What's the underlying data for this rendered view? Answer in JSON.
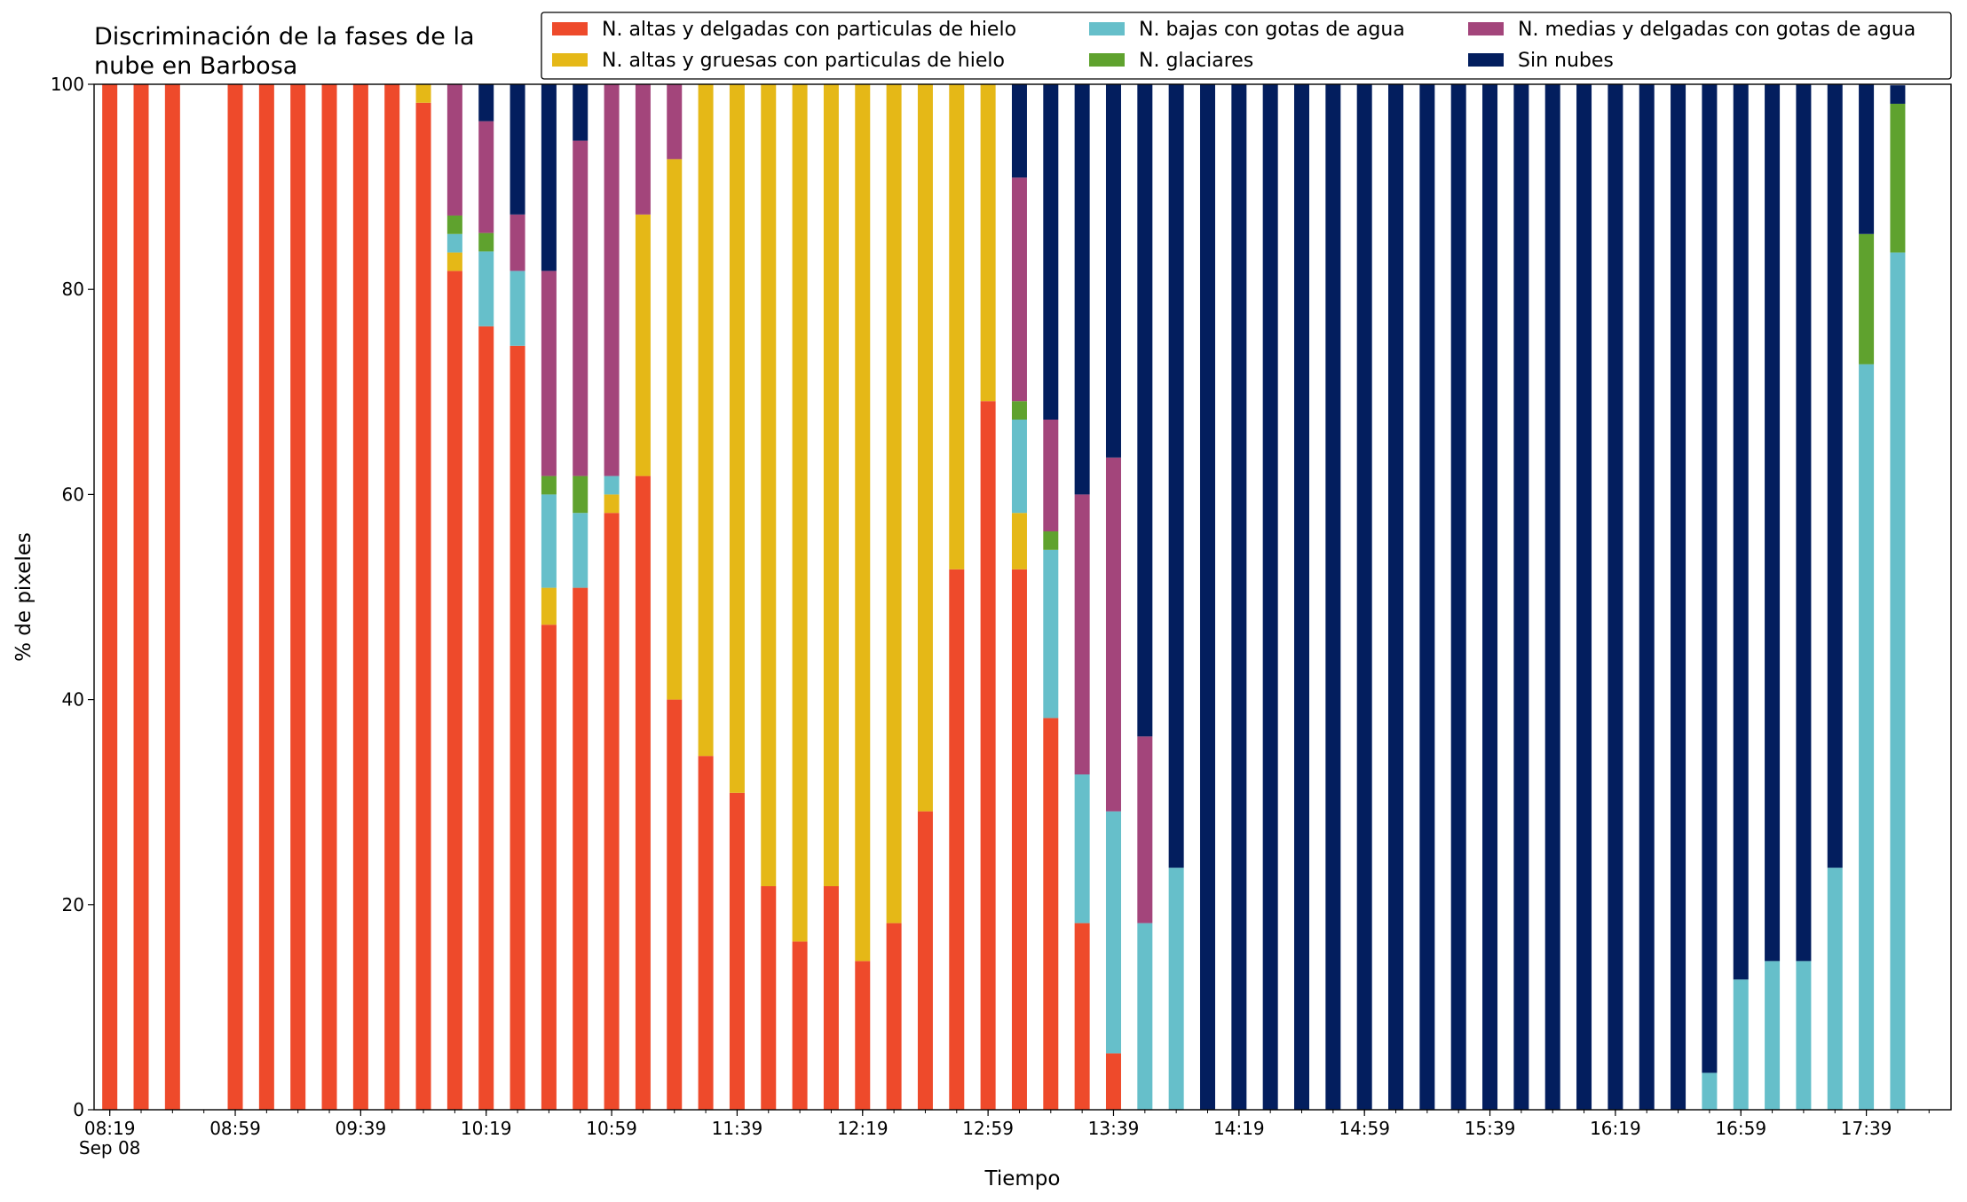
{
  "chart_data": {
    "type": "bar",
    "stacked": true,
    "title": "Discriminación de la fases de la\nnube en Barbosa",
    "x_label": "Tiempo",
    "y_label": "% de pixeles",
    "x": [
      "08:19",
      "08:29",
      "08:39",
      "08:59",
      "09:09",
      "09:19",
      "09:29",
      "09:39",
      "09:49",
      "09:59",
      "10:09",
      "10:19",
      "10:29",
      "10:39",
      "10:49",
      "10:59",
      "11:09",
      "11:19",
      "11:29",
      "11:39",
      "11:49",
      "11:59",
      "12:09",
      "12:19",
      "12:29",
      "12:39",
      "12:49",
      "12:59",
      "13:09",
      "13:19",
      "13:29",
      "13:39",
      "13:49",
      "13:59",
      "14:09",
      "14:19",
      "14:29",
      "14:39",
      "14:49",
      "14:59",
      "15:09",
      "15:19",
      "15:29",
      "15:39",
      "15:49",
      "15:59",
      "16:09",
      "16:19",
      "16:29",
      "16:39",
      "16:49",
      "16:59",
      "17:09",
      "17:19",
      "17:29",
      "17:39",
      "17:49"
    ],
    "xlim": [
      "08:14",
      "18:06"
    ],
    "xticks": [
      {
        "value": "08:19",
        "label": "08:19\nSep 08"
      },
      "08:59",
      "09:39",
      "10:19",
      "10:59",
      "11:39",
      "12:19",
      "12:59",
      "13:39",
      "14:19",
      "14:59",
      "15:39",
      "16:19",
      "16:59",
      "17:39"
    ],
    "ylim": [
      0,
      100
    ],
    "yticks": [
      0,
      20,
      40,
      60,
      80,
      100
    ],
    "grid": false,
    "legend": "top right",
    "series": [
      {
        "name": "N. altas y delgadas con particulas de hielo",
        "color": "#ee4a2b",
        "values": [
          100,
          100,
          100,
          100,
          100,
          100,
          100,
          100,
          100,
          98.2,
          81.8,
          76.4,
          74.5,
          47.3,
          50.9,
          58.2,
          61.8,
          40,
          34.5,
          30.9,
          21.8,
          16.4,
          21.8,
          14.5,
          18.2,
          29.1,
          52.7,
          69.1,
          52.7,
          38.2,
          18.2,
          5.5,
          0,
          0,
          0,
          0,
          0,
          0,
          0,
          0,
          0,
          0,
          0,
          0,
          0,
          0,
          0,
          0,
          0,
          0,
          0,
          0,
          0,
          0,
          0,
          0,
          0
        ]
      },
      {
        "name": "N. altas y gruesas con particulas de hielo",
        "color": "#e5b817",
        "values": [
          0,
          0,
          0,
          0,
          0,
          0,
          0,
          0,
          0,
          1.8,
          1.8,
          0,
          0,
          3.6,
          0,
          1.8,
          25.5,
          52.7,
          65.5,
          69.1,
          78.2,
          83.6,
          78.2,
          85.5,
          81.8,
          70.9,
          47.3,
          30.9,
          5.5,
          0,
          0,
          0,
          0,
          0,
          0,
          0,
          0,
          0,
          0,
          0,
          0,
          0,
          0,
          0,
          0,
          0,
          0,
          0,
          0,
          0,
          0,
          0,
          0,
          0,
          0,
          0,
          0
        ]
      },
      {
        "name": "N. bajas con gotas de agua",
        "color": "#66bfca",
        "values": [
          0,
          0,
          0,
          0,
          0,
          0,
          0,
          0,
          0,
          0,
          1.8,
          7.3,
          7.3,
          9.1,
          7.3,
          1.8,
          0,
          0,
          0,
          0,
          0,
          0,
          0,
          0,
          0,
          0,
          0,
          0,
          9.1,
          16.4,
          14.5,
          23.6,
          18.2,
          23.6,
          0,
          0,
          0,
          0,
          0,
          0,
          0,
          0,
          0,
          0,
          0,
          0,
          0,
          0,
          0,
          0,
          3.6,
          12.7,
          14.5,
          14.5,
          23.6,
          72.7,
          83.6
        ]
      },
      {
        "name": "N. glaciares",
        "color": "#5fa22e",
        "values": [
          0,
          0,
          0,
          0,
          0,
          0,
          0,
          0,
          0,
          0,
          1.8,
          1.8,
          0,
          1.8,
          3.6,
          0,
          0,
          0,
          0,
          0,
          0,
          0,
          0,
          0,
          0,
          0,
          0,
          0,
          1.8,
          1.8,
          0,
          0,
          0,
          0,
          0,
          0,
          0,
          0,
          0,
          0,
          0,
          0,
          0,
          0,
          0,
          0,
          0,
          0,
          0,
          0,
          0,
          0,
          0,
          0,
          0,
          12.7,
          14.5
        ]
      },
      {
        "name": "N. medias y delgadas con gotas de agua",
        "color": "#a3457b",
        "values": [
          0,
          0,
          0,
          0,
          0,
          0,
          0,
          0,
          0,
          0,
          12.8,
          10.9,
          5.5,
          20,
          32.7,
          38.2,
          12.7,
          7.3,
          0,
          0,
          0,
          0,
          0,
          0,
          0,
          0,
          0,
          0,
          21.8,
          10.9,
          27.3,
          34.5,
          18.2,
          0,
          0,
          0,
          0,
          0,
          0,
          0,
          0,
          0,
          0,
          0,
          0,
          0,
          0,
          0,
          0,
          0,
          0,
          0,
          0,
          0,
          0,
          0,
          0
        ]
      },
      {
        "name": "Sin nubes",
        "color": "#031e5e",
        "values": [
          0,
          0,
          0,
          0,
          0,
          0,
          0,
          0,
          0,
          0,
          0,
          3.6,
          12.7,
          18.2,
          5.5,
          0,
          0,
          0,
          0,
          0,
          0,
          0,
          0,
          0,
          0,
          0,
          0,
          0,
          9.1,
          32.7,
          40,
          36.4,
          63.6,
          76.4,
          100,
          100,
          100,
          100,
          100,
          100,
          100,
          100,
          100,
          100,
          100,
          100,
          100,
          100,
          100,
          100,
          96.4,
          87.3,
          85.5,
          85.5,
          76.4,
          14.6,
          1.8
        ]
      }
    ]
  }
}
